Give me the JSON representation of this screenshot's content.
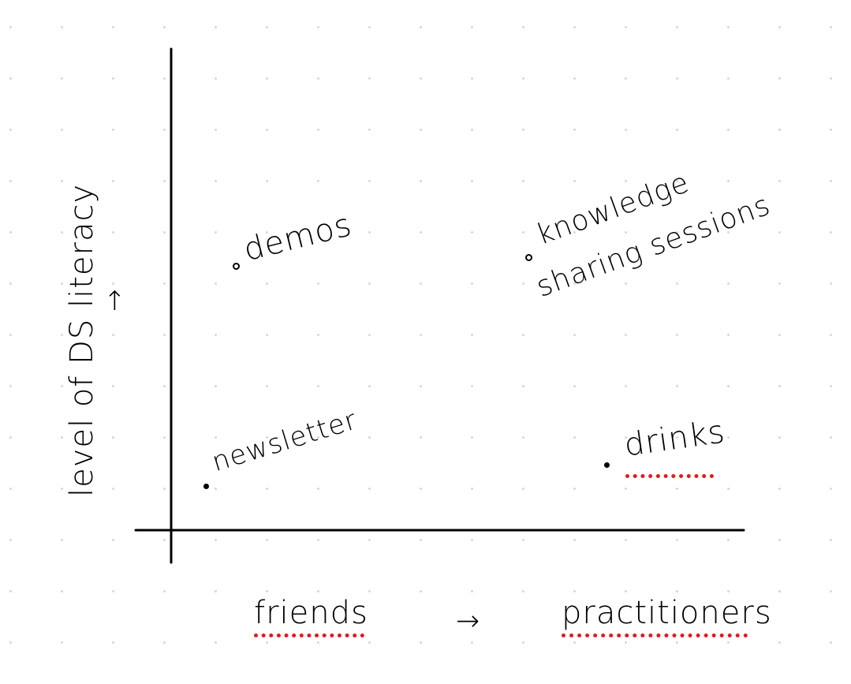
{
  "y_axis_label": "level of DS literacy",
  "y_axis_arrow": "→",
  "x_axis": {
    "left_label": "friends",
    "arrow": "→",
    "right_label": "practitioners"
  },
  "items": {
    "demos": "demos",
    "knowledge_line1": "knowledge",
    "knowledge_line2": "sharing sessions",
    "newsletter": "newsletter",
    "drinks": "drinks"
  },
  "colors": {
    "ink": "#000000",
    "spellcheck_underline": "#e01b1b",
    "grid_dot": "#d6d6d6"
  }
}
